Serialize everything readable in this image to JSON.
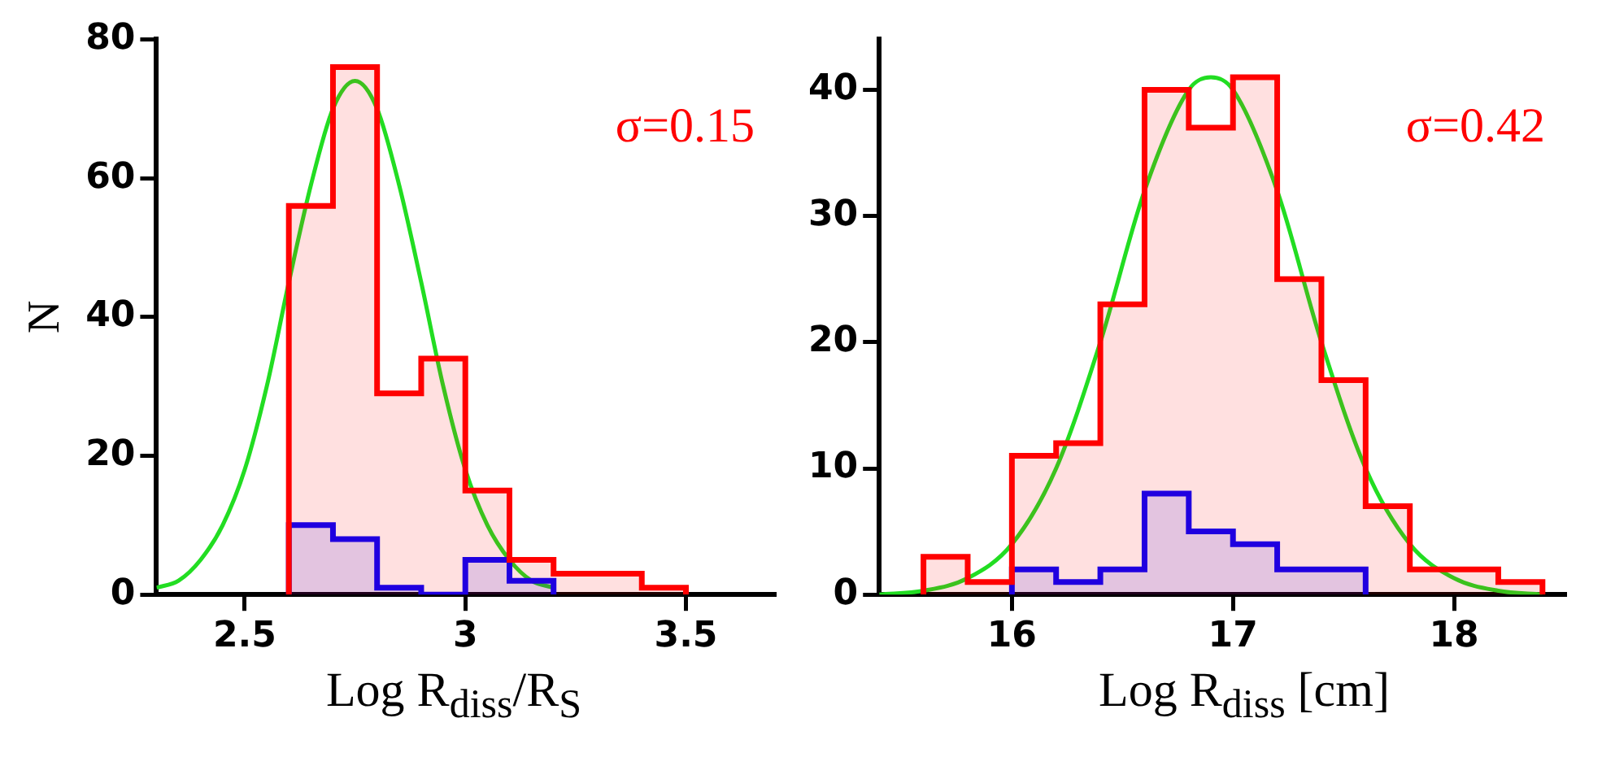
{
  "chart_data": [
    {
      "type": "histogram",
      "ylabel": "N",
      "xlabel": "Log R$_{diss}$/R$_{S}$",
      "annotations": [
        "σ=0.15"
      ],
      "xlim": [
        2.3,
        3.7
      ],
      "ylim": [
        0,
        80
      ],
      "xticks": [
        2.5,
        3,
        3.5
      ],
      "yticks": [
        0,
        20,
        40,
        60,
        80
      ],
      "series": [
        {
          "color": "#ff0000",
          "bins": [
            2.6,
            2.7,
            2.8,
            2.9,
            3.0,
            3.1,
            3.2,
            3.3,
            3.4,
            3.5
          ],
          "values": [
            56,
            76,
            29,
            34,
            15,
            5,
            3,
            3,
            1
          ]
        },
        {
          "color": "#0000ff",
          "bins": [
            2.6,
            2.7,
            2.8,
            2.9,
            3.0,
            3.1,
            3.2
          ],
          "values": [
            10,
            8,
            1,
            0,
            5,
            2
          ]
        },
        {
          "type": "line",
          "color": "#22dd22",
          "x": [
            2.3,
            2.35,
            2.4,
            2.45,
            2.5,
            2.55,
            2.6,
            2.65,
            2.7,
            2.75,
            2.8,
            2.85,
            2.9,
            2.95,
            3.0,
            3.05,
            3.1,
            3.15,
            3.2
          ],
          "values": [
            1,
            2,
            5,
            10,
            18,
            30,
            45,
            59,
            70,
            74,
            70,
            59,
            45,
            30,
            18,
            10,
            5,
            2,
            1
          ]
        }
      ]
    },
    {
      "type": "histogram",
      "xlabel": "Log R$_{diss}$ [cm]",
      "annotations": [
        "σ=0.42"
      ],
      "xlim": [
        15.4,
        18.5
      ],
      "ylim": [
        0,
        44
      ],
      "xticks": [
        16,
        17,
        18
      ],
      "yticks": [
        0,
        10,
        20,
        30,
        40
      ],
      "series": [
        {
          "color": "#ff0000",
          "bins": [
            15.6,
            15.8,
            16.0,
            16.2,
            16.4,
            16.6,
            16.8,
            17.0,
            17.2,
            17.4,
            17.6,
            17.8,
            18.0,
            18.2,
            18.4
          ],
          "values": [
            3,
            1,
            11,
            12,
            23,
            40,
            37,
            41,
            25,
            17,
            7,
            2,
            2,
            1
          ]
        },
        {
          "color": "#0000ff",
          "bins": [
            16.0,
            16.2,
            16.4,
            16.6,
            16.8,
            17.0,
            17.2,
            17.4,
            17.6
          ],
          "values": [
            2,
            1,
            2,
            8,
            5,
            4,
            2,
            2
          ]
        },
        {
          "type": "line",
          "color": "#22dd22",
          "x": [
            15.4,
            15.6,
            15.8,
            16.0,
            16.2,
            16.4,
            16.6,
            16.8,
            16.9,
            17.0,
            17.2,
            17.4,
            17.6,
            17.8,
            18.0,
            18.2,
            18.4
          ],
          "values": [
            0,
            0.3,
            1.3,
            4,
            10,
            20,
            32,
            40,
            41,
            40,
            32,
            20,
            10,
            4,
            1.3,
            0.3,
            0
          ]
        }
      ]
    }
  ]
}
